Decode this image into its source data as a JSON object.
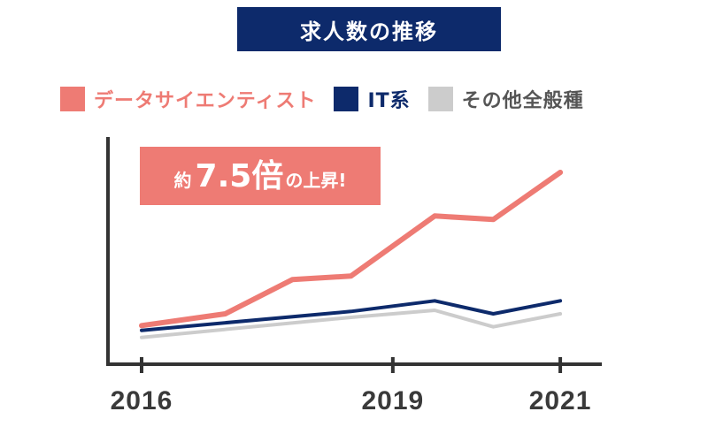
{
  "title": "求人数の推移",
  "legend": [
    {
      "label": "データサイエンティスト",
      "color": "#ee7b74"
    },
    {
      "label": "IT系",
      "color": "#0d2a6b"
    },
    {
      "label": "その他全般種",
      "color": "#cccccc"
    }
  ],
  "callout": {
    "prefix": "約",
    "value": "7.5倍",
    "suffix": "の上昇!"
  },
  "colors": {
    "title_bg": "#0d2a6b",
    "callout_bg": "#ee7b74",
    "axis": "#333333",
    "tick_text": "#3a3a3a"
  },
  "chart_data": {
    "type": "line",
    "title": "求人数の推移",
    "xlabel": "",
    "ylabel": "",
    "x": [
      2016,
      2017,
      2017.8,
      2018.5,
      2019.5,
      2020.2,
      2021
    ],
    "xlim": [
      2016,
      2021.2
    ],
    "xticks": [
      "2016",
      "2019",
      "2021"
    ],
    "ylim": [
      0,
      7.5
    ],
    "series": [
      {
        "name": "データサイエンティスト",
        "color": "#ee7b74",
        "values": [
          1.0,
          1.5,
          2.95,
          3.1,
          5.65,
          5.5,
          7.5
        ]
      },
      {
        "name": "IT系",
        "color": "#0d2a6b",
        "values": [
          0.8,
          null,
          null,
          1.6,
          2.05,
          1.5,
          2.05
        ]
      },
      {
        "name": "その他全般種",
        "color": "#cccccc",
        "values": [
          0.5,
          null,
          null,
          1.35,
          1.65,
          0.95,
          1.5
        ]
      }
    ]
  }
}
